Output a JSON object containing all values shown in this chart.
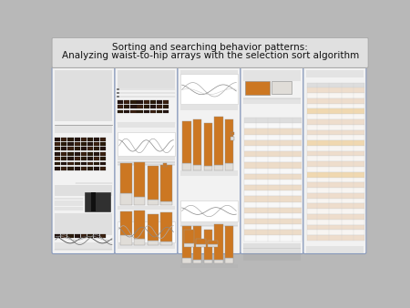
{
  "title_line1": "Sorting and searching behavior patterns:",
  "title_line2": "Analyzing waist-to-hip arrays with the selection sort algorithm",
  "title_fontsize": 7.5,
  "title_bg": "#e0e0e0",
  "poster_bg": "#b8b8b8",
  "panel_bg": "#f2f2f2",
  "panel_bg2": "#e8e8ec",
  "panel_border": "#8899bb",
  "bar_orange": "#cc7722",
  "bar_orange2": "#e8a055",
  "bar_light": "#c8c0b0",
  "bar_vlight": "#e0ddd8",
  "text_line_color": "#cccccc",
  "dark_strip": "#2a1a10",
  "dark_strip2": "#4a3020"
}
